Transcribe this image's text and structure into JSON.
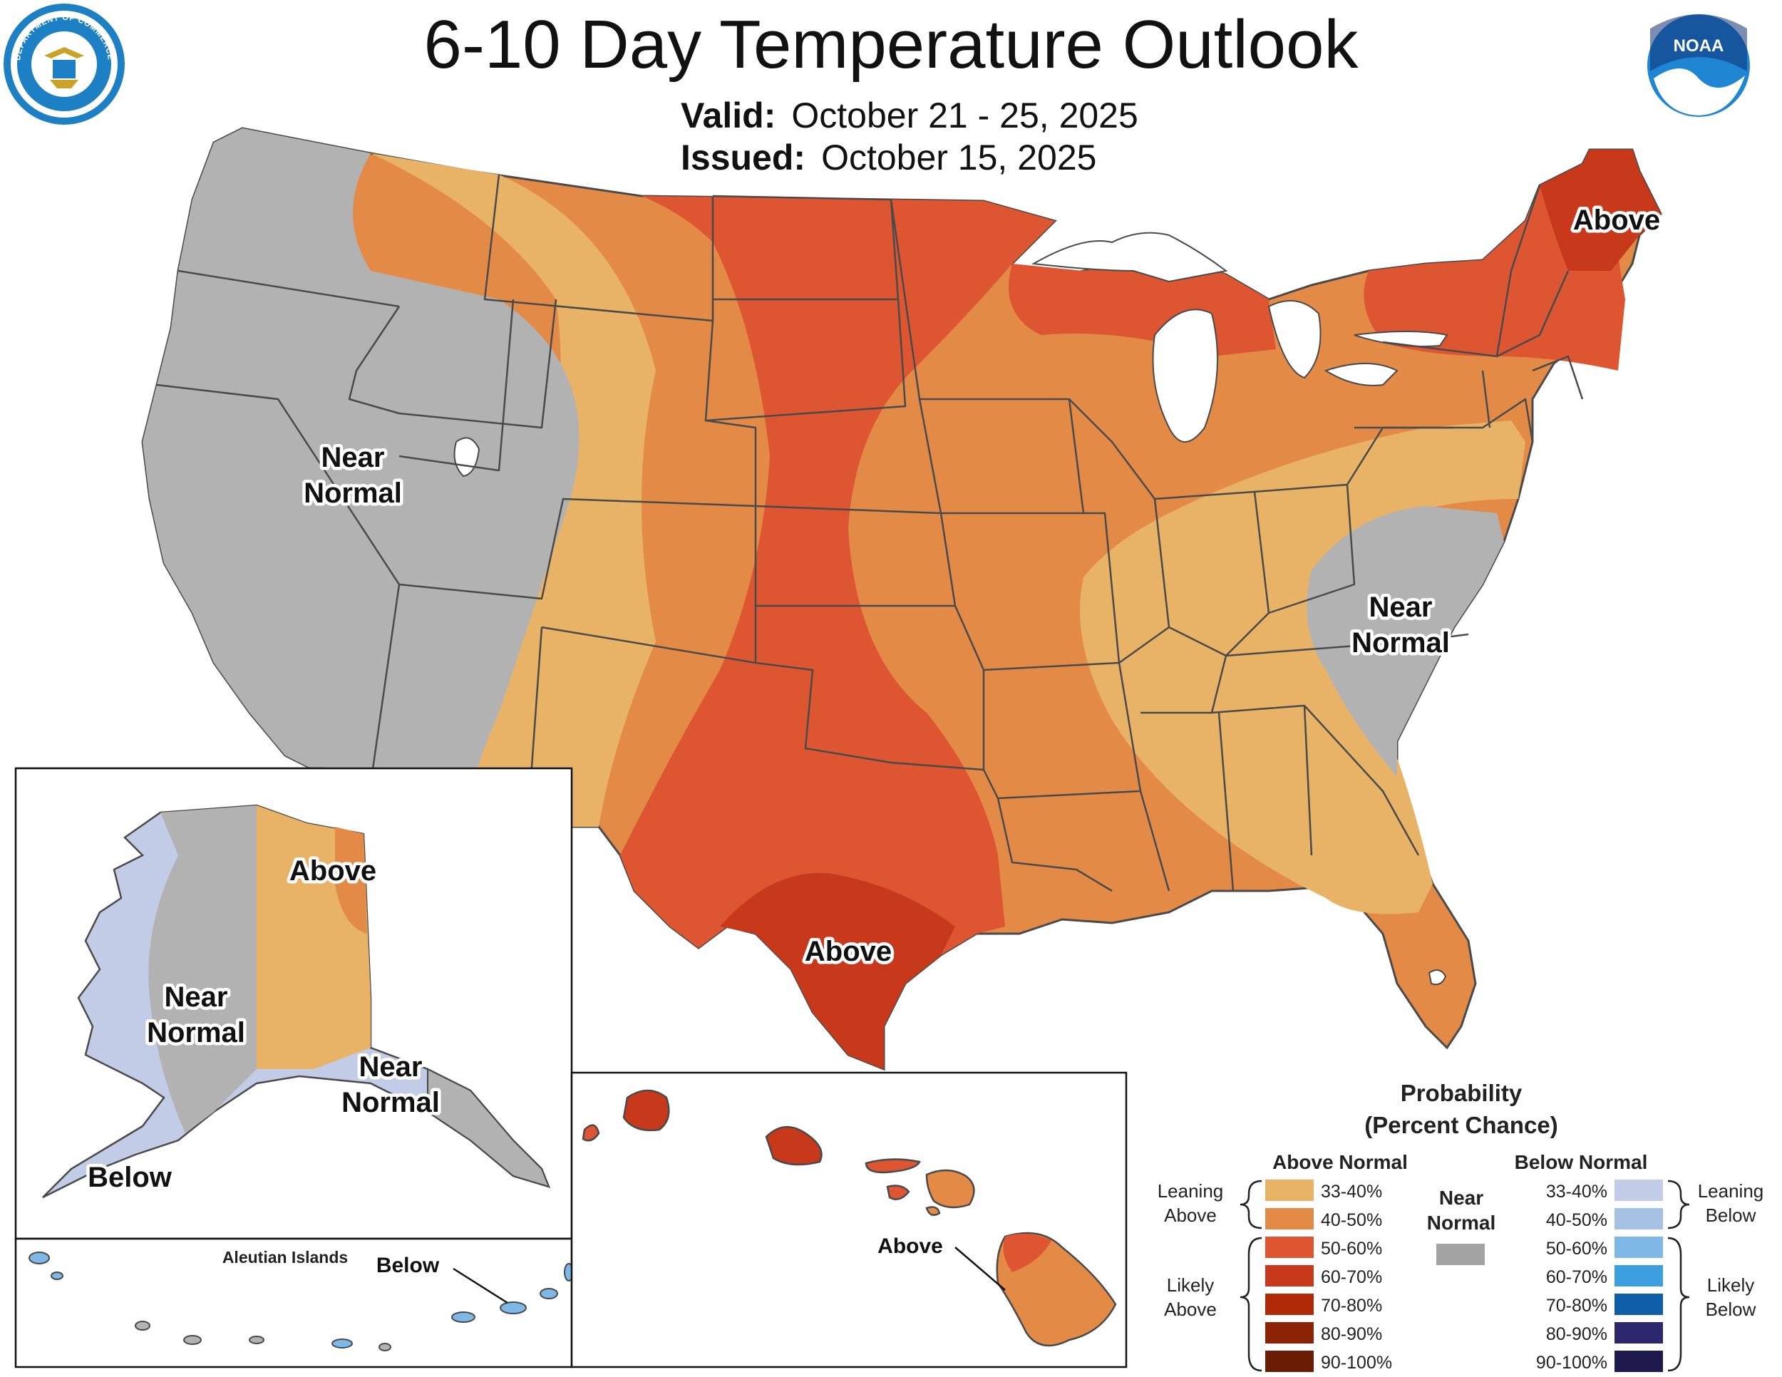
{
  "header": {
    "title": "6-10 Day Temperature Outlook",
    "valid_label": "Valid:",
    "valid_dates": "October 21 - 25, 2025",
    "issued_label": "Issued:",
    "issued_date": "October 15, 2025"
  },
  "logos": {
    "left": {
      "icon": "department-of-commerce-seal-icon",
      "color": "#1d7fc4",
      "text_top": "DEPARTMENT OF COMMERCE",
      "text_bottom": "UNITED STATES OF AMERICA"
    },
    "right": {
      "icon": "noaa-logo-icon",
      "color": "#1f86d3",
      "text": "NOAA"
    }
  },
  "colors": {
    "near_normal": "#b2b2b2",
    "above_33_40": "#e8b267",
    "above_40_50": "#e48a47",
    "above_50_60": "#dd5631",
    "above_60_70": "#c8391c",
    "above_70_80": "#b02a08",
    "above_80_90": "#8c2206",
    "above_90_100": "#6a1d04",
    "below_33_40": "#c3cce7",
    "below_40_50": "#a5c2e4",
    "below_50_60": "#7fb8e6",
    "below_60_70": "#3d9ee0",
    "below_70_80": "#0f5fa8",
    "below_80_90": "#2d2770",
    "below_90_100": "#1e1a4e",
    "near_normal_swatch": "#a3a3a3",
    "border": "#4a4a4a",
    "water": "#ffffff"
  },
  "map_labels": {
    "west_near_normal": [
      "Near",
      "Normal"
    ],
    "east_near_normal": [
      "Near",
      "Normal"
    ],
    "maine_above": "Above",
    "texas_above": "Above",
    "alaska_above": "Above",
    "alaska_near_normal_west": [
      "Near",
      "Normal"
    ],
    "alaska_near_normal_south": [
      "Near",
      "Normal"
    ],
    "alaska_below": "Below",
    "aleutian_title": "Aleutian Islands",
    "aleutian_below": "Below",
    "hawaii_above": "Above"
  },
  "legend": {
    "title_line1": "Probability",
    "title_line2": "(Percent Chance)",
    "above_header": "Above Normal",
    "below_header": "Below Normal",
    "near_header": [
      "Near",
      "Normal"
    ],
    "ranges": [
      "33-40%",
      "40-50%",
      "50-60%",
      "60-70%",
      "70-80%",
      "80-90%",
      "90-100%"
    ],
    "leaning_above": [
      "Leaning",
      "Above"
    ],
    "likely_above": [
      "Likely",
      "Above"
    ],
    "leaning_below": [
      "Leaning",
      "Below"
    ],
    "likely_below": [
      "Likely",
      "Below"
    ]
  }
}
